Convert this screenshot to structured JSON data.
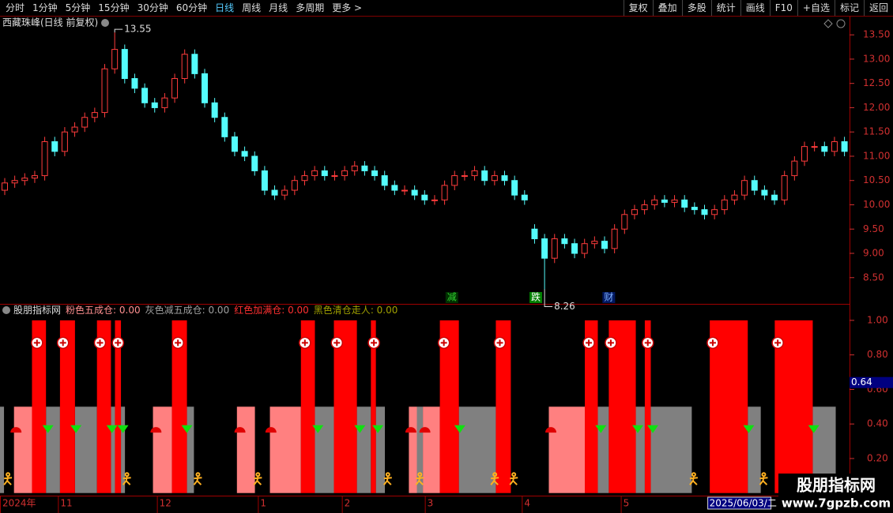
{
  "toolbar": {
    "left": [
      "分时",
      "1分钟",
      "5分钟",
      "15分钟",
      "30分钟",
      "60分钟",
      "日线",
      "周线",
      "月线",
      "多周期",
      "更多 >"
    ],
    "active": 6,
    "right": [
      "复权",
      "叠加",
      "多股",
      "统计",
      "画线",
      "F10",
      "+自选",
      "标记",
      "返回"
    ]
  },
  "chart_data": [
    {
      "type": "candlestick",
      "title": "西藏珠峰(日线 前复权)",
      "open": [
        10.3,
        10.45,
        10.5,
        10.55,
        10.6,
        11.3,
        11.1,
        11.5,
        11.6,
        11.8,
        11.9,
        12.8,
        13.2,
        12.6,
        12.4,
        12.1,
        12.0,
        12.2,
        12.6,
        13.1,
        12.7,
        12.1,
        11.8,
        11.4,
        11.1,
        11.0,
        10.7,
        10.3,
        10.2,
        10.3,
        10.5,
        10.6,
        10.7,
        10.6,
        10.6,
        10.7,
        10.8,
        10.7,
        10.6,
        10.4,
        10.3,
        10.3,
        10.2,
        10.1,
        10.1,
        10.4,
        10.6,
        10.6,
        10.7,
        10.5,
        10.6,
        10.5,
        10.2,
        9.5,
        9.3,
        8.9,
        9.3,
        9.2,
        9.0,
        9.2,
        9.25,
        9.1,
        9.5,
        9.8,
        9.9,
        10.0,
        10.1,
        10.05,
        10.1,
        9.95,
        9.9,
        9.8,
        9.9,
        10.1,
        10.2,
        10.5,
        10.3,
        10.2,
        10.1,
        10.6,
        10.9,
        11.2,
        11.2,
        11.1,
        11.3
      ],
      "high": [
        10.55,
        10.6,
        10.65,
        10.7,
        11.4,
        11.4,
        11.6,
        11.7,
        11.9,
        12.0,
        12.9,
        13.55,
        13.3,
        12.7,
        12.5,
        12.2,
        12.3,
        12.7,
        13.2,
        13.2,
        12.8,
        12.2,
        11.9,
        11.5,
        11.2,
        11.1,
        10.8,
        10.4,
        10.4,
        10.6,
        10.7,
        10.8,
        10.8,
        10.7,
        10.8,
        10.9,
        10.9,
        10.8,
        10.7,
        10.5,
        10.4,
        10.4,
        10.3,
        10.2,
        10.5,
        10.7,
        10.7,
        10.8,
        10.8,
        10.7,
        10.7,
        10.6,
        10.3,
        9.6,
        9.4,
        9.4,
        9.4,
        9.3,
        9.3,
        9.35,
        9.35,
        9.6,
        9.9,
        10.0,
        10.1,
        10.2,
        10.2,
        10.2,
        10.2,
        10.05,
        10.0,
        10.0,
        10.2,
        10.3,
        10.6,
        10.6,
        10.4,
        10.3,
        10.7,
        11.0,
        11.3,
        11.3,
        11.3,
        11.4,
        11.4
      ],
      "low": [
        10.2,
        10.35,
        10.4,
        10.45,
        10.5,
        11.0,
        11.0,
        11.4,
        11.5,
        11.7,
        11.8,
        12.7,
        12.5,
        12.3,
        12.0,
        11.9,
        11.9,
        12.1,
        12.5,
        12.6,
        12.0,
        11.7,
        11.3,
        11.0,
        10.9,
        10.6,
        10.2,
        10.1,
        10.1,
        10.2,
        10.4,
        10.5,
        10.5,
        10.5,
        10.5,
        10.6,
        10.6,
        10.5,
        10.3,
        10.2,
        10.2,
        10.1,
        10.0,
        10.0,
        10.0,
        10.3,
        10.5,
        10.5,
        10.4,
        10.4,
        10.4,
        10.1,
        10.0,
        9.2,
        8.26,
        8.8,
        9.1,
        8.9,
        8.9,
        9.1,
        9.0,
        9.0,
        9.4,
        9.7,
        9.8,
        9.9,
        9.95,
        9.95,
        9.85,
        9.8,
        9.7,
        9.7,
        9.8,
        10.0,
        10.1,
        10.2,
        10.1,
        10.0,
        10.0,
        10.5,
        10.8,
        11.1,
        11.0,
        11.0,
        11.0
      ],
      "close": [
        10.45,
        10.5,
        10.55,
        10.6,
        11.3,
        11.1,
        11.5,
        11.6,
        11.8,
        11.9,
        12.8,
        13.2,
        12.6,
        12.4,
        12.1,
        12.0,
        12.2,
        12.6,
        13.1,
        12.7,
        12.1,
        11.8,
        11.4,
        11.1,
        11.0,
        10.7,
        10.3,
        10.2,
        10.3,
        10.5,
        10.6,
        10.7,
        10.6,
        10.6,
        10.7,
        10.8,
        10.7,
        10.6,
        10.4,
        10.3,
        10.3,
        10.2,
        10.1,
        10.1,
        10.4,
        10.6,
        10.6,
        10.7,
        10.5,
        10.6,
        10.5,
        10.2,
        10.1,
        9.3,
        8.9,
        9.3,
        9.2,
        9.0,
        9.2,
        9.25,
        9.1,
        9.5,
        9.8,
        9.9,
        10.0,
        10.1,
        10.05,
        10.1,
        9.95,
        9.9,
        9.8,
        9.9,
        10.1,
        10.2,
        10.5,
        10.3,
        10.2,
        10.1,
        10.6,
        10.9,
        11.2,
        11.2,
        11.1,
        11.3,
        11.1
      ],
      "up_color": "#ff3c3c",
      "down_color": "#54fcfc",
      "ylim": [
        7.96,
        13.86
      ],
      "yticks": [
        {
          "value": 8.5,
          "label": "8.50"
        },
        {
          "value": 9,
          "label": "9.00"
        },
        {
          "value": 9.5,
          "label": "9.50"
        },
        {
          "value": 10,
          "label": "10.00"
        },
        {
          "value": 10.5,
          "label": "10.50"
        },
        {
          "value": 11,
          "label": "11.00"
        },
        {
          "value": 11.5,
          "label": "11.50"
        },
        {
          "value": 12,
          "label": "12.00"
        },
        {
          "value": 12.5,
          "label": "12.50"
        },
        {
          "value": 13,
          "label": "13.00"
        },
        {
          "value": 13.5,
          "label": "13.50"
        }
      ],
      "extremes": [
        {
          "series": "high",
          "index": 11
        },
        {
          "series": "low",
          "index": 54
        }
      ],
      "markers": [
        {
          "text": "减",
          "index": 45.2,
          "color": "#30d030",
          "bg": "#003000"
        },
        {
          "text": "跌",
          "index": 53.6,
          "color": "#ffffff",
          "bg": "#008000"
        },
        {
          "text": "财",
          "index": 60.9,
          "color": "#80b0ff",
          "bg": "#001860"
        }
      ]
    },
    {
      "type": "block",
      "title": "股朋指标网",
      "series": [
        {
          "name": "粉色五成仓",
          "color": "#ff8080",
          "label_color": "#ff9090",
          "level": 0.5,
          "value": {
            "value": 0,
            "label": "0.00"
          },
          "blocks": [
            [
              1.4,
              3.2
            ],
            [
              15.3,
              17.2
            ],
            [
              23.7,
              25.5
            ],
            [
              27.0,
              30.1
            ],
            [
              40.9,
              41.7
            ],
            [
              42.3,
              44.0
            ],
            [
              54.9,
              58.5
            ]
          ]
        },
        {
          "name": "灰色减五成仓",
          "color": "#808080",
          "label_color": "#a0a0a0",
          "level": 0.5,
          "value": {
            "value": 0,
            "label": "0.00"
          },
          "blocks": [
            [
              0,
              0.4
            ],
            [
              4.6,
              6.0
            ],
            [
              7.5,
              9.7
            ],
            [
              11.1,
              11.5
            ],
            [
              12.1,
              12.5
            ],
            [
              18.7,
              19.4
            ],
            [
              31.5,
              33.4
            ],
            [
              35.7,
              37.1
            ],
            [
              37.6,
              38.5
            ],
            [
              41.7,
              42.3
            ],
            [
              45.9,
              49.6
            ],
            [
              59.8,
              60.9
            ],
            [
              63.6,
              64.5
            ],
            [
              65.1,
              69.2
            ],
            [
              74.8,
              76.1
            ],
            [
              81.3,
              83.6
            ]
          ]
        },
        {
          "name": "红色加满仓",
          "color": "#ff0000",
          "label_color": "#ff3030",
          "level": 1,
          "value": {
            "value": 0,
            "label": "0.00"
          },
          "blocks": [
            [
              3.2,
              4.6
            ],
            [
              6.0,
              7.5
            ],
            [
              9.7,
              11.1
            ],
            [
              11.5,
              12.1
            ],
            [
              17.2,
              18.7
            ],
            [
              30.1,
              31.5
            ],
            [
              33.4,
              35.7
            ],
            [
              37.1,
              37.6
            ],
            [
              44.0,
              45.9
            ],
            [
              49.6,
              51.1
            ],
            [
              58.5,
              59.8
            ],
            [
              60.9,
              63.6
            ],
            [
              64.5,
              65.1
            ],
            [
              71.0,
              74.8
            ],
            [
              77.5,
              81.3
            ]
          ]
        },
        {
          "name": "黑色清仓走人",
          "color": "#000000",
          "label_color": "#a0a000",
          "level": 0,
          "value": {
            "value": 0,
            "label": "0.00"
          },
          "blocks": []
        }
      ],
      "events": {
        "buy_full": [
          3.7,
          6.3,
          10.0,
          11.8,
          17.8,
          30.5,
          33.7,
          37.4,
          44.4,
          50.0,
          58.9,
          61.1,
          64.8,
          71.3,
          77.8
        ],
        "buy_half": [
          1.6,
          15.6,
          24.0,
          27.1,
          41.1,
          42.5,
          55.1
        ],
        "reduce": [
          4.8,
          7.6,
          11.2,
          12.3,
          18.7,
          31.8,
          36.0,
          37.8,
          46.0,
          60.1,
          63.8,
          65.3,
          74.9,
          81.4
        ],
        "exit": [
          0.8,
          12.7,
          19.8,
          25.8,
          38.8,
          42.0,
          49.5,
          51.4,
          69.4,
          76.4
        ]
      },
      "cursor_value": 0.64,
      "ylim": [
        -0.015,
        1.027
      ],
      "yticks": [
        {
          "value": 0.2,
          "label": "0.20"
        },
        {
          "value": 0.4,
          "label": "0.40"
        },
        {
          "value": 0.6,
          "label": "0.60"
        },
        {
          "value": 0.8,
          "label": "0.80"
        },
        {
          "value": 1,
          "label": "1.00"
        }
      ]
    }
  ],
  "time_axis": {
    "labels": [
      {
        "label": "2024年",
        "index": 0
      },
      {
        "label": "11",
        "index": 5.8
      },
      {
        "label": "12",
        "index": 15.7
      },
      {
        "label": "1",
        "index": 25.8
      },
      {
        "label": "2",
        "index": 34.2
      },
      {
        "label": "3",
        "index": 42.5
      },
      {
        "label": "4",
        "index": 52.2
      },
      {
        "label": "5",
        "index": 62.1
      }
    ],
    "cursor": {
      "label": "2025/06/03/二",
      "index": 70.8
    }
  },
  "watermark": {
    "name": "股朋指标网",
    "url": "www.7gpzb.com"
  }
}
